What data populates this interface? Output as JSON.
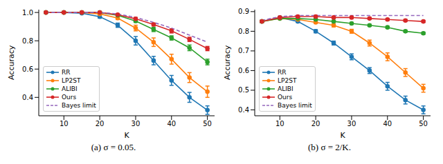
{
  "chart_data": [
    {
      "type": "line",
      "title": "(a) σ = 0.05.",
      "x_label": "K",
      "y_label": "Accuracy",
      "x": [
        5,
        10,
        15,
        20,
        25,
        30,
        35,
        40,
        45,
        50
      ],
      "xlim": [
        3,
        52
      ],
      "xticks": [
        10,
        20,
        30,
        40,
        50
      ],
      "ylim": [
        0.27,
        1.02
      ],
      "yticks": [
        0.4,
        0.6,
        0.8,
        {
          "value": 1,
          "label": "1.0"
        }
      ],
      "grid": false,
      "legend": "lower left",
      "series": [
        {
          "name": "RR",
          "color": "#1f77b4",
          "marker": "circle",
          "line_style": "solid",
          "values": [
            1.0,
            1.0,
            0.995,
            0.97,
            0.91,
            0.8,
            0.66,
            0.52,
            0.4,
            0.31
          ],
          "errors": [
            0,
            0,
            0.005,
            0.01,
            0.015,
            0.03,
            0.03,
            0.035,
            0.035,
            0.03
          ]
        },
        {
          "name": "LP2ST",
          "color": "#ff7f0e",
          "marker": "circle",
          "line_style": "solid",
          "values": [
            1.0,
            1.0,
            1.0,
            0.99,
            0.96,
            0.89,
            0.79,
            0.67,
            0.54,
            0.44
          ],
          "errors": [
            0,
            0,
            0,
            0.005,
            0.01,
            0.02,
            0.03,
            0.035,
            0.035,
            0.04
          ]
        },
        {
          "name": "ALIBI",
          "color": "#2ca02c",
          "marker": "circle",
          "line_style": "solid",
          "values": [
            1.0,
            1.0,
            1.0,
            1.0,
            0.98,
            0.94,
            0.88,
            0.82,
            0.75,
            0.65
          ],
          "errors": [
            0,
            0,
            0,
            0,
            0.005,
            0.01,
            0.015,
            0.015,
            0.02,
            0.02
          ]
        },
        {
          "name": "Ours",
          "color": "#d62728",
          "marker": "circle",
          "line_style": "solid",
          "values": [
            1.0,
            1.0,
            1.0,
            1.0,
            0.985,
            0.955,
            0.915,
            0.87,
            0.81,
            0.745
          ],
          "errors": [
            0,
            0,
            0,
            0,
            0.005,
            0.01,
            0.01,
            0.015,
            0.015,
            0.015
          ]
        },
        {
          "name": "Bayes limit",
          "color": "#9467bd",
          "marker": "none",
          "line_style": "dashed",
          "values": [
            1.0,
            1.0,
            1.0,
            1.0,
            0.99,
            0.965,
            0.93,
            0.89,
            0.84,
            0.79
          ]
        }
      ]
    },
    {
      "type": "line",
      "title": "(b) σ = 2/K.",
      "x_label": "K",
      "y_label": "Accuracy",
      "x": [
        5,
        10,
        15,
        20,
        25,
        30,
        35,
        40,
        45,
        50
      ],
      "xlim": [
        3,
        52
      ],
      "xticks": [
        10,
        20,
        30,
        40,
        50
      ],
      "ylim": [
        0.37,
        0.91
      ],
      "yticks": [
        0.4,
        0.5,
        0.6,
        0.7,
        0.8,
        0.9
      ],
      "grid": false,
      "legend": "lower left",
      "series": [
        {
          "name": "RR",
          "color": "#1f77b4",
          "marker": "circle",
          "line_style": "solid",
          "values": [
            0.85,
            0.87,
            0.85,
            0.8,
            0.74,
            0.67,
            0.6,
            0.52,
            0.45,
            0.4
          ],
          "errors": [
            0.005,
            0.005,
            0.005,
            0.008,
            0.01,
            0.015,
            0.015,
            0.02,
            0.02,
            0.02
          ]
        },
        {
          "name": "LP2ST",
          "color": "#ff7f0e",
          "marker": "circle",
          "line_style": "solid",
          "values": [
            0.85,
            0.865,
            0.86,
            0.845,
            0.83,
            0.8,
            0.74,
            0.67,
            0.59,
            0.51
          ],
          "errors": [
            0.005,
            0.005,
            0.005,
            0.005,
            0.008,
            0.01,
            0.015,
            0.02,
            0.02,
            0.02
          ]
        },
        {
          "name": "ALIBI",
          "color": "#2ca02c",
          "marker": "circle",
          "line_style": "solid",
          "values": [
            0.85,
            0.865,
            0.865,
            0.86,
            0.85,
            0.84,
            0.83,
            0.82,
            0.8,
            0.79
          ],
          "errors": [
            0.005,
            0.005,
            0.005,
            0.005,
            0.005,
            0.005,
            0.005,
            0.005,
            0.005,
            0.005
          ]
        },
        {
          "name": "Ours",
          "color": "#d62728",
          "marker": "circle",
          "line_style": "solid",
          "values": [
            0.85,
            0.87,
            0.875,
            0.875,
            0.87,
            0.87,
            0.865,
            0.86,
            0.855,
            0.85
          ],
          "errors": [
            0.005,
            0.005,
            0.005,
            0.005,
            0.005,
            0.005,
            0.005,
            0.005,
            0.005,
            0.005
          ]
        },
        {
          "name": "Bayes limit",
          "color": "#9467bd",
          "marker": "none",
          "line_style": "dashed",
          "values": [
            0.855,
            0.875,
            0.88,
            0.88,
            0.88,
            0.88,
            0.88,
            0.88,
            0.88,
            0.88
          ]
        }
      ]
    }
  ]
}
